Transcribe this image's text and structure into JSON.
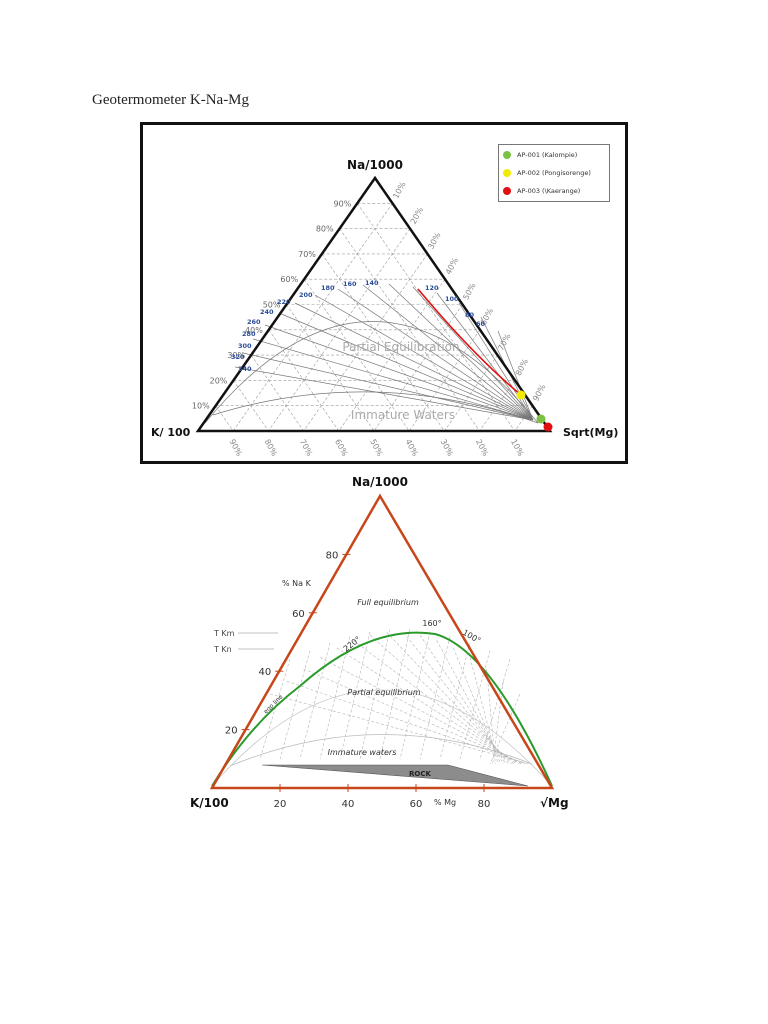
{
  "document": {
    "title": "Geotermometer K-Na-Mg"
  },
  "figure1": {
    "apex_top": "Na/1000",
    "apex_left": "K/ 100",
    "apex_right": "Sqrt(Mg)",
    "left_edge_ticks": [
      "90%",
      "80%",
      "70%",
      "60%",
      "50%",
      "40%",
      "30%",
      "20%",
      "10%"
    ],
    "right_edge_ticks": [
      "10%",
      "20%",
      "30%",
      "40%",
      "50%",
      "60%",
      "70%",
      "80%",
      "90%"
    ],
    "bottom_edge_ticks": [
      "90%",
      "80%",
      "70%",
      "60%",
      "50%",
      "40%",
      "30%",
      "20%",
      "10%"
    ],
    "temperature_labels": [
      "340",
      "320",
      "300",
      "280",
      "260",
      "240",
      "220",
      "200",
      "180",
      "160",
      "140",
      "120",
      "100",
      "80",
      "60"
    ],
    "region_partial": "Partial Equilibration",
    "region_immature": "Immature Waters",
    "legend": [
      {
        "label": "AP-001 (Kalompie)",
        "color": "#7dc142"
      },
      {
        "label": "AP-002 (Pongisorenge)",
        "color": "#f2ea00"
      },
      {
        "label": "AP-003 (\\Kaerange)",
        "color": "#e01010"
      }
    ]
  },
  "figure2": {
    "apex_top": "Na/1000",
    "apex_left": "K/100",
    "apex_right": "√Mg",
    "left_axis_ticks": [
      "80",
      "60",
      "40",
      "20"
    ],
    "bottom_axis_ticks": [
      "20",
      "40",
      "60",
      "80"
    ],
    "left_axis_title": "% Na K",
    "bottom_axis_title": "% Mg",
    "tkm": "T Km",
    "tkn": "T Kn",
    "full_equilibrium": "Full equilibrium",
    "partial_equilibrium": "Partial equilibrium",
    "immature_waters": "Immature waters",
    "rock": "ROCK",
    "temp_160": "160°",
    "temp_220": "220°",
    "temp_100": "100°",
    "curve_label": "eqp line"
  }
}
